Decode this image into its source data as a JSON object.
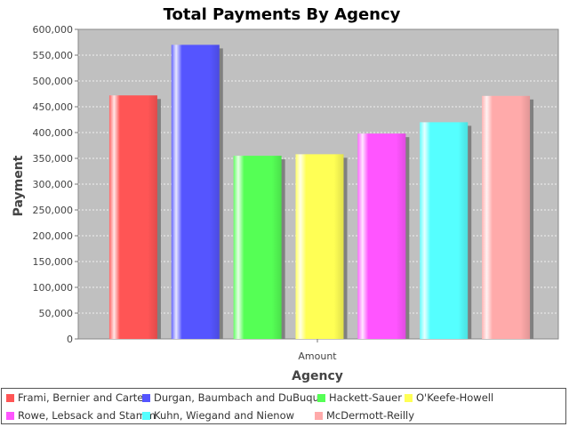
{
  "chart_data": {
    "type": "bar",
    "title": "Total Payments By Agency",
    "xlabel": "Agency",
    "ylabel": "Payment",
    "categories": [
      "Amount"
    ],
    "ylim": [
      0,
      600000
    ],
    "ytick_step": 50000,
    "ytick_labels": [
      "0",
      "50,000",
      "100,000",
      "150,000",
      "200,000",
      "250,000",
      "300,000",
      "350,000",
      "400,000",
      "450,000",
      "500,000",
      "550,000",
      "600,000"
    ],
    "grid": true,
    "legend_position": "bottom",
    "series": [
      {
        "name": "Frami, Bernier and Carter",
        "values": [
          472000
        ],
        "color": "#ff5555"
      },
      {
        "name": "Durgan, Baumbach and DuBuque",
        "values": [
          570000
        ],
        "color": "#5555ff"
      },
      {
        "name": "Hackett-Sauer",
        "values": [
          355000
        ],
        "color": "#55ff55"
      },
      {
        "name": "O'Keefe-Howell",
        "values": [
          358000
        ],
        "color": "#ffff55"
      },
      {
        "name": "Rowe, Lebsack and Stamm",
        "values": [
          398000
        ],
        "color": "#ff55ff"
      },
      {
        "name": "Kuhn, Wiegand and Nienow",
        "values": [
          420000
        ],
        "color": "#55ffff"
      },
      {
        "name": "McDermott-Reilly",
        "values": [
          471000
        ],
        "color": "#ffaaaa"
      }
    ]
  }
}
